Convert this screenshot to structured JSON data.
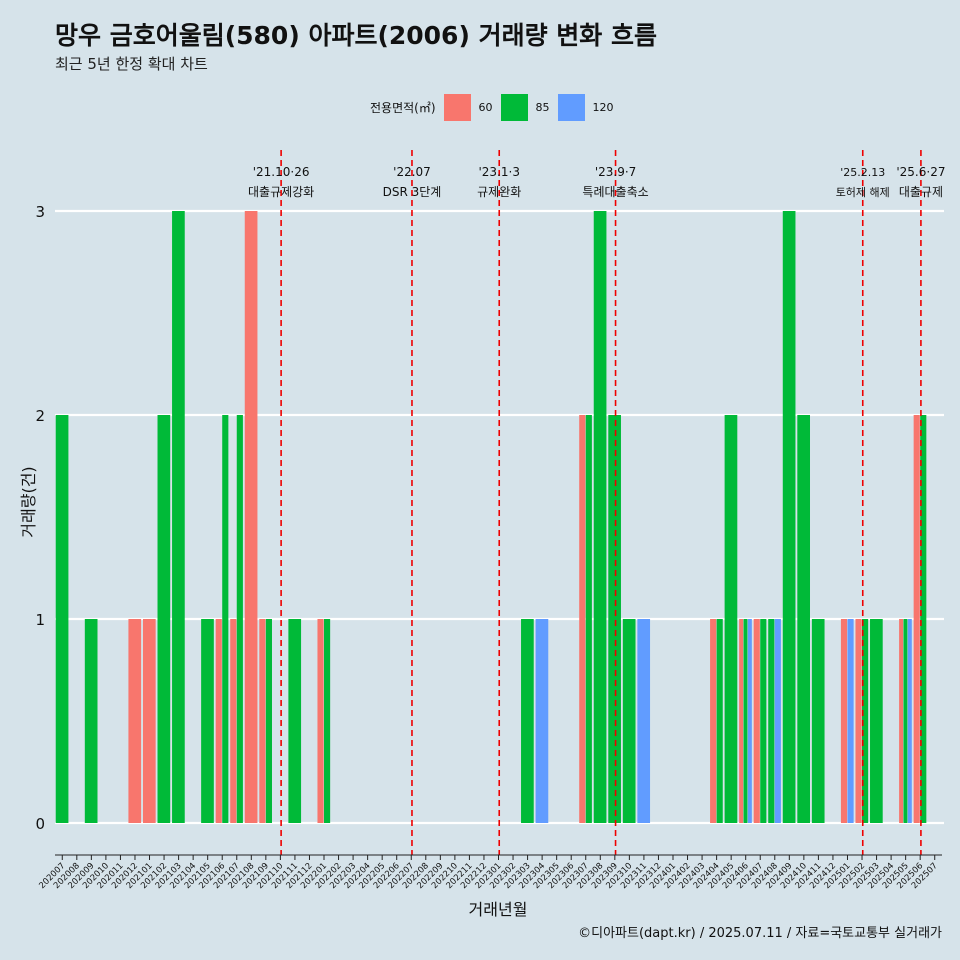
{
  "title": "망우 금호어울림(580) 아파트(2006) 거래량 변화 흐름",
  "subtitle": "최근 5년 한정 확대 차트",
  "footer": "©디아파트(dapt.kr) / 2025.07.11 / 자료=국토교통부 실거래가",
  "colors": {
    "60": "#f8766d",
    "85": "#00ba38",
    "120": "#619cff",
    "event_line": "#ee0000",
    "background": "#d6e3ea"
  },
  "chart_data": {
    "type": "bar",
    "title": "망우 금호어울림(580) 아파트(2006) 거래량 변화 흐름",
    "subtitle": "최근 5년 한정 확대 차트",
    "xlabel": "거래년월",
    "ylabel": "거래량(건)",
    "ylim": [
      0,
      3
    ],
    "yticks": [
      0,
      1,
      2,
      3
    ],
    "grid": "horizontal",
    "legend": {
      "title": "전용면적(㎡)",
      "placement": "top",
      "entries": [
        "60",
        "85",
        "120"
      ]
    },
    "categories": [
      "202007",
      "202008",
      "202009",
      "202010",
      "202011",
      "202012",
      "202101",
      "202102",
      "202103",
      "202104",
      "202105",
      "202106",
      "202107",
      "202108",
      "202109",
      "202110",
      "202111",
      "202112",
      "202201",
      "202202",
      "202203",
      "202204",
      "202205",
      "202206",
      "202207",
      "202208",
      "202209",
      "202210",
      "202211",
      "202212",
      "202301",
      "202302",
      "202303",
      "202304",
      "202305",
      "202306",
      "202307",
      "202308",
      "202309",
      "202310",
      "202311",
      "202312",
      "202401",
      "202402",
      "202403",
      "202404",
      "202405",
      "202406",
      "202407",
      "202408",
      "202409",
      "202410",
      "202411",
      "202412",
      "202501",
      "202502",
      "202503",
      "202504",
      "202505",
      "202506",
      "202507"
    ],
    "series": [
      {
        "name": "60",
        "values": [
          0,
          0,
          0,
          0,
          0,
          1,
          1,
          0,
          0,
          0,
          0,
          1,
          1,
          3,
          1,
          0,
          0,
          0,
          1,
          0,
          0,
          0,
          0,
          0,
          0,
          0,
          0,
          0,
          0,
          0,
          0,
          0,
          0,
          0,
          0,
          0,
          2,
          0,
          0,
          0,
          0,
          0,
          0,
          0,
          0,
          1,
          0,
          1,
          1,
          0,
          0,
          0,
          0,
          0,
          1,
          1,
          0,
          0,
          1,
          2,
          0
        ]
      },
      {
        "name": "85",
        "values": [
          2,
          0,
          1,
          0,
          0,
          0,
          0,
          2,
          3,
          0,
          1,
          2,
          2,
          0,
          1,
          0,
          1,
          0,
          1,
          0,
          0,
          0,
          0,
          0,
          0,
          0,
          0,
          0,
          0,
          0,
          0,
          0,
          1,
          0,
          0,
          0,
          2,
          3,
          2,
          1,
          0,
          0,
          0,
          0,
          0,
          1,
          2,
          1,
          1,
          1,
          3,
          2,
          1,
          0,
          0,
          1,
          1,
          0,
          1,
          2,
          0
        ]
      },
      {
        "name": "120",
        "values": [
          0,
          0,
          0,
          0,
          0,
          0,
          0,
          0,
          0,
          0,
          0,
          0,
          0,
          0,
          0,
          0,
          0,
          0,
          0,
          0,
          0,
          0,
          0,
          0,
          0,
          0,
          0,
          0,
          0,
          0,
          0,
          0,
          0,
          1,
          0,
          0,
          0,
          0,
          0,
          0,
          1,
          0,
          0,
          0,
          0,
          0,
          0,
          1,
          0,
          1,
          0,
          0,
          0,
          0,
          1,
          0,
          0,
          0,
          1,
          0,
          0
        ]
      }
    ],
    "annotations": [
      {
        "x": "202110",
        "date": "'21.10·26",
        "text": "대출규제강화"
      },
      {
        "x": "202207",
        "date": "'22.07",
        "text": "DSR 3단계"
      },
      {
        "x": "202301",
        "date": "'23.1·3",
        "text": "규제완화"
      },
      {
        "x": "202309",
        "date": "'23.9·7",
        "text": "특례대출축소"
      },
      {
        "x": "202502",
        "date": "'25.2.13",
        "text": "토허제 해제"
      },
      {
        "x": "202506",
        "date": "'25.6·27",
        "text": "대출규제"
      }
    ]
  }
}
